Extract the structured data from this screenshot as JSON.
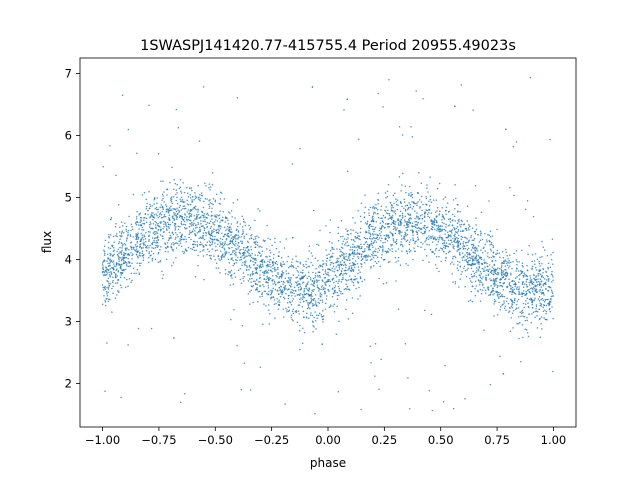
{
  "chart_data": {
    "type": "scatter",
    "title": "1SWASPJ141420.77-415755.4 Period 20955.49023s",
    "xlabel": "phase",
    "ylabel": "flux",
    "xlim": [
      -1.1,
      1.1
    ],
    "ylim": [
      1.3,
      7.25
    ],
    "x_ticks": [
      -1.0,
      -0.75,
      -0.5,
      -0.25,
      0.0,
      0.25,
      0.5,
      0.75,
      1.0
    ],
    "x_tick_labels": [
      "−1.00",
      "−0.75",
      "−0.50",
      "−0.25",
      "0.00",
      "0.25",
      "0.50",
      "0.75",
      "1.00"
    ],
    "y_ticks": [
      2,
      3,
      4,
      5,
      6,
      7
    ],
    "y_tick_labels": [
      "2",
      "3",
      "4",
      "5",
      "6",
      "7"
    ],
    "grid": false,
    "legend": "none",
    "marker_color": "#1f77b4",
    "series": [
      {
        "x": [
          -1.0,
          -0.9,
          -0.8,
          -0.75,
          -0.7,
          -0.65,
          -0.6,
          -0.55,
          -0.5,
          -0.4,
          -0.3,
          -0.2,
          -0.15,
          -0.1,
          0.0,
          0.1,
          0.2,
          0.25,
          0.3,
          0.35,
          0.4,
          0.45,
          0.5,
          0.6,
          0.7,
          0.8,
          0.85,
          0.9,
          1.0
        ],
        "y": [
          3.7,
          4.1,
          4.45,
          4.55,
          4.62,
          4.65,
          4.63,
          4.55,
          4.45,
          4.2,
          3.85,
          3.6,
          3.5,
          3.5,
          3.6,
          3.95,
          4.35,
          4.5,
          4.6,
          4.65,
          4.63,
          4.55,
          4.45,
          4.2,
          3.85,
          3.6,
          3.52,
          3.5,
          3.55
        ]
      }
    ]
  }
}
